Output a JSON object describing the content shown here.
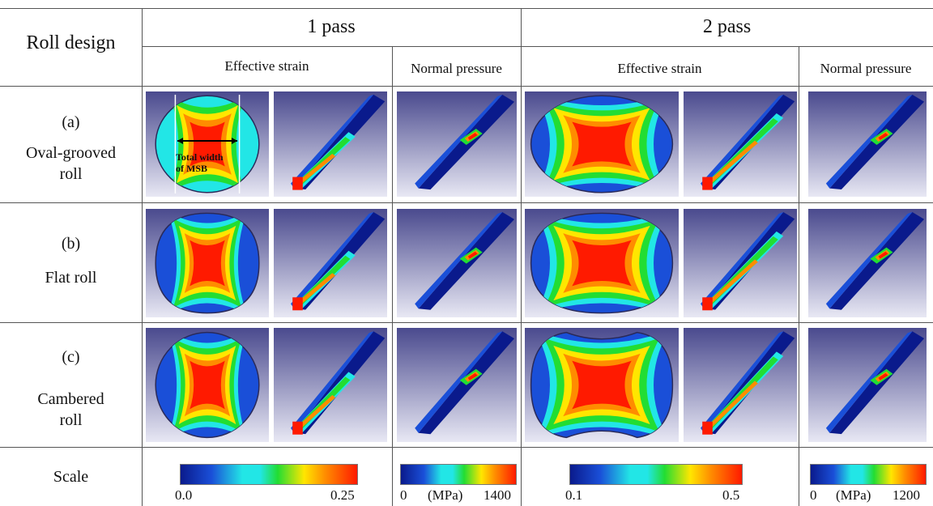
{
  "table": {
    "corner_label": "Roll design",
    "pass_headers": [
      "1 pass",
      "2 pass"
    ],
    "sub_headers": [
      "Effective strain",
      "Normal pressure",
      "Effective strain",
      "Normal pressure"
    ],
    "rows": [
      {
        "letter": "(a)",
        "name_line1": "Oval-grooved",
        "name_line2": "roll",
        "cross_shape": "oval-grooved"
      },
      {
        "letter": "(b)",
        "name_line1": "Flat roll",
        "name_line2": "",
        "cross_shape": "flat"
      },
      {
        "letter": "(c)",
        "name_line1": "Cambered",
        "name_line2": "roll",
        "cross_shape": "cambered"
      }
    ],
    "annotation": {
      "line1": "Total width",
      "line2": "of MSB"
    },
    "scale_label": "Scale",
    "scales": [
      {
        "min": "0.0",
        "max": "0.25",
        "unit": "",
        "kind": "strain"
      },
      {
        "min": "0",
        "max": "1400",
        "unit": "(MPa)",
        "kind": "pressure"
      },
      {
        "min": "0.1",
        "max": "0.5",
        "unit": "",
        "kind": "strain"
      },
      {
        "min": "0",
        "max": "1200",
        "unit": "(MPa)",
        "kind": "pressure"
      }
    ]
  },
  "colors": {
    "red": "#ff1a00",
    "orange": "#ff8c00",
    "yellow": "#ffe600",
    "green": "#22dd33",
    "cyan": "#22e6e6",
    "blue": "#1a4fd8",
    "navy": "#0a1a8c",
    "bg_top": "#4a4a8e",
    "bg_bottom": "#e8e8f4"
  }
}
